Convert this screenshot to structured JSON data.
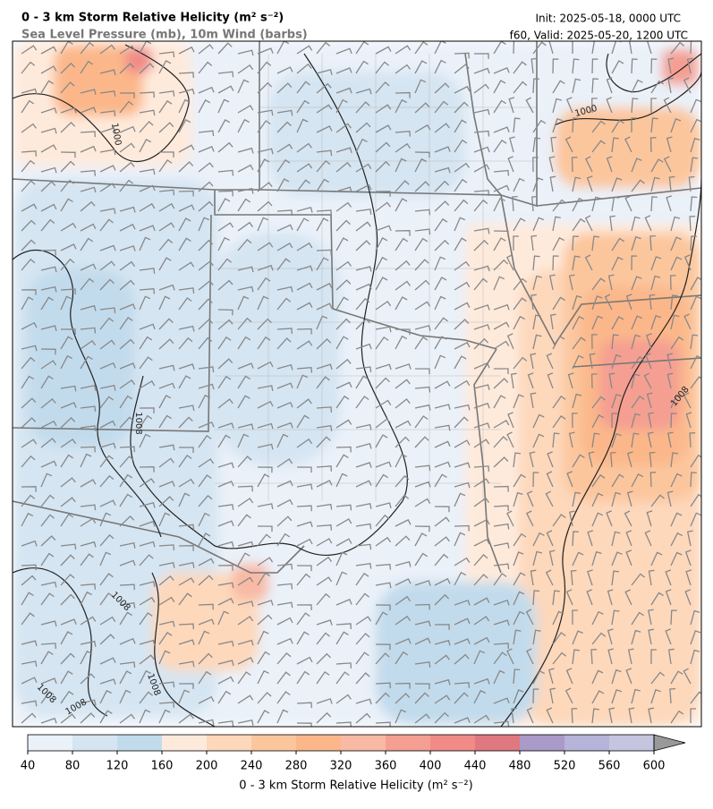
{
  "header": {
    "title": "0 - 3 km Storm Relative Helicity (m² s⁻²)",
    "subtitle": "Sea Level Pressure (mb), 10m Wind (barbs)",
    "init": "Init: 2025-05-18, 0000 UTC",
    "valid": "f60, Valid: 2025-05-20, 1200 UTC"
  },
  "colorbar": {
    "ticks": [
      40,
      80,
      120,
      160,
      200,
      240,
      280,
      320,
      360,
      400,
      440,
      480,
      520,
      560,
      600
    ],
    "colors": [
      "#eaf1f9",
      "#d5e5f2",
      "#c2dbec",
      "#feeadb",
      "#fdd8bb",
      "#fcc69d",
      "#fbb78a",
      "#f8b9a5",
      "#f49f92",
      "#f08b88",
      "#e07880",
      "#a99ac8",
      "#b6b4d8",
      "#c6c5e0"
    ],
    "extend_color": "#999999",
    "label": "0 - 3 km Storm Relative Helicity (m² s⁻²)"
  },
  "map": {
    "contour_labels": [
      "1000",
      "1000",
      "1008",
      "1008",
      "1008",
      "1008",
      "1008",
      "1008"
    ]
  }
}
